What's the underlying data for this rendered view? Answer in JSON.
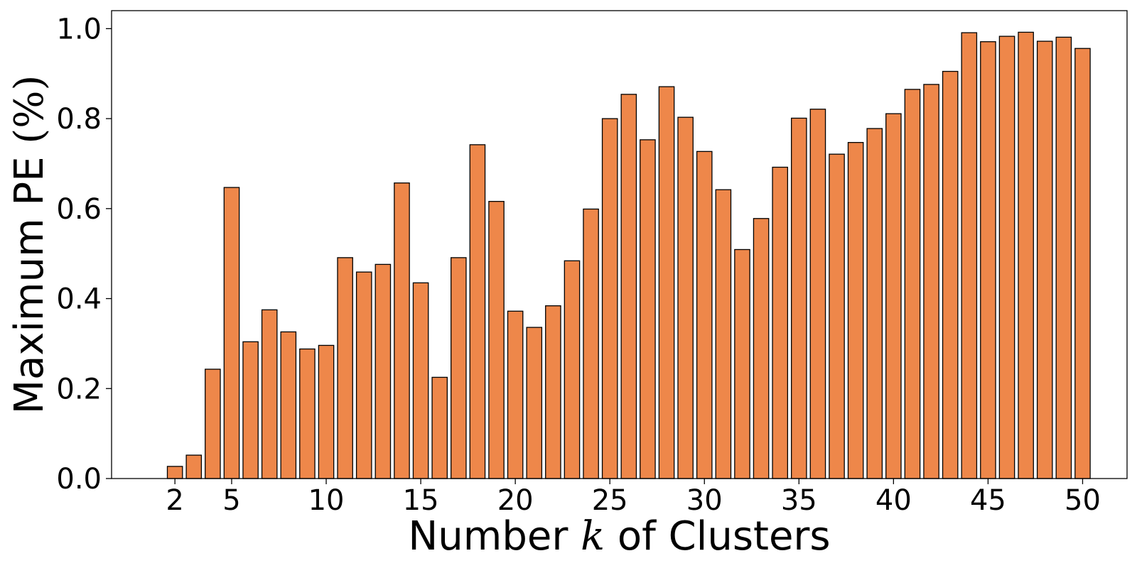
{
  "chart_data": {
    "type": "bar",
    "title": "",
    "xlabel": {
      "before": "Number ",
      "math": "k",
      "after": " of Clusters"
    },
    "ylabel": {
      "text": "Maximum PE ",
      "unit": "(%)"
    },
    "x": [
      2,
      3,
      4,
      5,
      6,
      7,
      8,
      9,
      10,
      11,
      12,
      13,
      14,
      15,
      16,
      17,
      18,
      19,
      20,
      21,
      22,
      23,
      24,
      25,
      26,
      27,
      28,
      29,
      30,
      31,
      32,
      33,
      34,
      35,
      36,
      37,
      38,
      39,
      40,
      41,
      42,
      43,
      44,
      45,
      46,
      47,
      48,
      49,
      50
    ],
    "values": [
      0.027,
      0.052,
      0.243,
      0.647,
      0.304,
      0.375,
      0.326,
      0.288,
      0.296,
      0.491,
      0.459,
      0.476,
      0.657,
      0.435,
      0.225,
      0.491,
      0.742,
      0.616,
      0.372,
      0.336,
      0.384,
      0.484,
      0.599,
      0.8,
      0.854,
      0.753,
      0.871,
      0.803,
      0.727,
      0.642,
      0.509,
      0.578,
      0.692,
      0.801,
      0.821,
      0.721,
      0.747,
      0.778,
      0.811,
      0.865,
      0.876,
      0.905,
      0.991,
      0.971,
      0.983,
      0.992,
      0.972,
      0.981,
      0.956
    ],
    "xticks": [
      "2",
      "5",
      "10",
      "15",
      "20",
      "25",
      "30",
      "35",
      "40",
      "45",
      "50"
    ],
    "yticks": [
      "0.0",
      "0.2",
      "0.4",
      "0.6",
      "0.8",
      "1.0"
    ],
    "xlim": [
      -1.35,
      52.35
    ],
    "ylim": [
      0,
      1.04
    ],
    "bar_color": "#ee874a",
    "edge_color": "#000000",
    "grid": false,
    "legend": "none"
  }
}
